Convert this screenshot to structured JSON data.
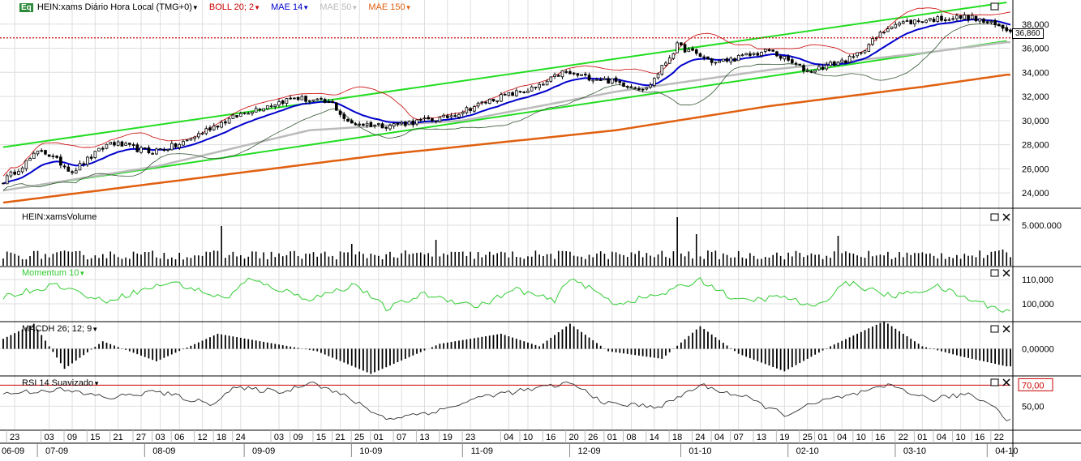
{
  "header": {
    "badge": "Eq",
    "symbol_label": "HEIN:xams Diário Hora Local (TMG+0)",
    "indicators": [
      {
        "label": "BOLL 20; 2",
        "color": "#cc0000"
      },
      {
        "label": "MAE 14",
        "color": "#0000cc"
      },
      {
        "label": "MAE 50",
        "color": "#bbbbbb"
      },
      {
        "label": "MAE 150",
        "color": "#e06010"
      }
    ]
  },
  "panels": {
    "volume": {
      "title": "HEIN:xamsVolume"
    },
    "momentum": {
      "title": "Momentum 10",
      "color": "#33cc33"
    },
    "macd": {
      "title": "MACDH 26; 12; 9"
    },
    "rsi": {
      "title": "RSI 14 Suavizado"
    }
  },
  "price_marker": "36,860",
  "chart_data": [
    {
      "type": "candlestick",
      "name": "price",
      "y_ticks": [
        "24,000",
        "26,000",
        "28,000",
        "30,000",
        "32,000",
        "34,000",
        "36,000",
        "38,000"
      ],
      "y_tick_values": [
        24000,
        26000,
        28000,
        30000,
        32000,
        34000,
        36000,
        38000
      ],
      "ylim": [
        22800,
        40000
      ],
      "last_price": 36860,
      "points": 20,
      "anchors": [
        [
          0,
          25000
        ],
        [
          10,
          27600
        ],
        [
          18,
          25800
        ],
        [
          28,
          28200
        ],
        [
          38,
          27400
        ],
        [
          46,
          28000
        ],
        [
          54,
          29400
        ],
        [
          64,
          30800
        ],
        [
          76,
          31900
        ],
        [
          86,
          31400
        ],
        [
          90,
          29800
        ],
        [
          100,
          29600
        ],
        [
          115,
          30200
        ],
        [
          128,
          31800
        ],
        [
          140,
          32800
        ],
        [
          146,
          34000
        ],
        [
          160,
          33200
        ],
        [
          168,
          32600
        ],
        [
          176,
          36200
        ],
        [
          186,
          34800
        ],
        [
          200,
          35800
        ],
        [
          210,
          34100
        ],
        [
          222,
          35200
        ],
        [
          232,
          38000
        ],
        [
          242,
          38400
        ],
        [
          252,
          38600
        ],
        [
          262,
          37600
        ]
      ],
      "overlays": [
        "Bollinger 20;2",
        "MAE 14",
        "MAE 50",
        "MAE 150"
      ],
      "trend_lines": [
        {
          "from": [
            0,
            27800
          ],
          "to": [
            262,
            39800
          ]
        },
        {
          "from": [
            0,
            24200
          ],
          "to": [
            262,
            36600
          ]
        }
      ],
      "ma150": [
        [
          0,
          23200
        ],
        [
          50,
          25200
        ],
        [
          100,
          27200
        ],
        [
          160,
          29200
        ],
        [
          200,
          31200
        ],
        [
          240,
          32800
        ],
        [
          262,
          33800
        ]
      ],
      "ma50": [
        [
          0,
          24200
        ],
        [
          40,
          26200
        ],
        [
          80,
          29200
        ],
        [
          120,
          30000
        ],
        [
          160,
          32400
        ],
        [
          200,
          34200
        ],
        [
          240,
          35600
        ],
        [
          262,
          36500
        ]
      ]
    },
    {
      "type": "bar",
      "name": "volume",
      "y_ticks": [
        "5.000.000"
      ],
      "y_tick_values": [
        5000000
      ],
      "ylim": [
        0,
        7000000
      ],
      "baseline": 1400000,
      "spikes": [
        [
          57,
          4900000
        ],
        [
          91,
          2700000
        ],
        [
          113,
          3200000
        ],
        [
          176,
          6000000
        ],
        [
          181,
          3900000
        ],
        [
          218,
          3700000
        ],
        [
          261,
          2000000
        ]
      ]
    },
    {
      "type": "line",
      "name": "momentum",
      "y_ticks": [
        "110,000",
        "100,000"
      ],
      "y_tick_values": [
        110,
        100
      ],
      "ylim": [
        93,
        115
      ],
      "anchors": [
        [
          0,
          103
        ],
        [
          14,
          108
        ],
        [
          26,
          101
        ],
        [
          44,
          109
        ],
        [
          58,
          102
        ],
        [
          64,
          110
        ],
        [
          80,
          102
        ],
        [
          92,
          108
        ],
        [
          100,
          98
        ],
        [
          110,
          104
        ],
        [
          124,
          99
        ],
        [
          134,
          106
        ],
        [
          144,
          101
        ],
        [
          148,
          111
        ],
        [
          160,
          100
        ],
        [
          172,
          104
        ],
        [
          182,
          110
        ],
        [
          192,
          101
        ],
        [
          204,
          103
        ],
        [
          212,
          98
        ],
        [
          220,
          109
        ],
        [
          232,
          103
        ],
        [
          244,
          107
        ],
        [
          252,
          102
        ],
        [
          262,
          97
        ]
      ]
    },
    {
      "type": "histogram",
      "name": "macdh",
      "y_ticks": [
        "0,00000"
      ],
      "y_tick_values": [
        0
      ],
      "ylim": [
        -1.05,
        1.05
      ],
      "anchors": [
        [
          0,
          0.4
        ],
        [
          8,
          1.0
        ],
        [
          16,
          -0.8
        ],
        [
          26,
          0.3
        ],
        [
          40,
          -0.5
        ],
        [
          56,
          0.6
        ],
        [
          82,
          -0.1
        ],
        [
          96,
          -1.0
        ],
        [
          114,
          0.2
        ],
        [
          130,
          0.6
        ],
        [
          140,
          0.1
        ],
        [
          148,
          1.0
        ],
        [
          158,
          -0.1
        ],
        [
          172,
          -0.4
        ],
        [
          182,
          0.9
        ],
        [
          192,
          -0.2
        ],
        [
          204,
          -0.9
        ],
        [
          216,
          0.1
        ],
        [
          230,
          1.1
        ],
        [
          240,
          0.1
        ],
        [
          250,
          -0.3
        ],
        [
          262,
          -0.7
        ]
      ]
    },
    {
      "type": "line",
      "name": "rsi",
      "y_ticks": [
        "70,00",
        "50,00"
      ],
      "y_tick_values": [
        70,
        50
      ],
      "ylim": [
        28,
        78
      ],
      "anchors": [
        [
          0,
          62
        ],
        [
          14,
          66
        ],
        [
          28,
          58
        ],
        [
          40,
          64
        ],
        [
          54,
          52
        ],
        [
          60,
          67
        ],
        [
          74,
          64
        ],
        [
          80,
          74
        ],
        [
          90,
          58
        ],
        [
          100,
          38
        ],
        [
          114,
          46
        ],
        [
          126,
          60
        ],
        [
          138,
          66
        ],
        [
          148,
          72
        ],
        [
          158,
          52
        ],
        [
          172,
          50
        ],
        [
          182,
          70
        ],
        [
          194,
          58
        ],
        [
          204,
          42
        ],
        [
          214,
          55
        ],
        [
          226,
          64
        ],
        [
          232,
          70
        ],
        [
          242,
          56
        ],
        [
          252,
          62
        ],
        [
          260,
          48
        ],
        [
          262,
          36
        ]
      ]
    }
  ],
  "x_axis": {
    "points": 264,
    "day_ticks": [
      {
        "i": 3,
        "label": "23"
      },
      {
        "i": 12,
        "label": "03"
      },
      {
        "i": 18,
        "label": "09"
      },
      {
        "i": 24,
        "label": "15"
      },
      {
        "i": 30,
        "label": "21"
      },
      {
        "i": 36,
        "label": "27"
      },
      {
        "i": 41,
        "label": "03"
      },
      {
        "i": 46,
        "label": "06"
      },
      {
        "i": 52,
        "label": "12"
      },
      {
        "i": 57,
        "label": "18"
      },
      {
        "i": 62,
        "label": "24"
      },
      {
        "i": 72,
        "label": "03"
      },
      {
        "i": 77,
        "label": "09"
      },
      {
        "i": 83,
        "label": "15"
      },
      {
        "i": 88,
        "label": "21"
      },
      {
        "i": 93,
        "label": "25"
      },
      {
        "i": 98,
        "label": "01"
      },
      {
        "i": 104,
        "label": "07"
      },
      {
        "i": 110,
        "label": "13"
      },
      {
        "i": 116,
        "label": "19"
      },
      {
        "i": 122,
        "label": "23"
      },
      {
        "i": 132,
        "label": "04"
      },
      {
        "i": 137,
        "label": "10"
      },
      {
        "i": 143,
        "label": "16"
      },
      {
        "i": 149,
        "label": "20"
      },
      {
        "i": 154,
        "label": "26"
      },
      {
        "i": 159,
        "label": "01"
      },
      {
        "i": 164,
        "label": "08"
      },
      {
        "i": 170,
        "label": "14"
      },
      {
        "i": 176,
        "label": "18"
      },
      {
        "i": 182,
        "label": "24"
      },
      {
        "i": 187,
        "label": "04"
      },
      {
        "i": 192,
        "label": "07"
      },
      {
        "i": 198,
        "label": "13"
      },
      {
        "i": 204,
        "label": "19"
      },
      {
        "i": 210,
        "label": "25"
      },
      {
        "i": 214,
        "label": "01"
      },
      {
        "i": 219,
        "label": "04"
      },
      {
        "i": 224,
        "label": "10"
      },
      {
        "i": 229,
        "label": "16"
      },
      {
        "i": 235,
        "label": "22"
      },
      {
        "i": 240,
        "label": "01"
      },
      {
        "i": 245,
        "label": "04"
      },
      {
        "i": 250,
        "label": "10"
      },
      {
        "i": 255,
        "label": "16"
      },
      {
        "i": 260,
        "label": "22"
      }
    ],
    "month_ticks": [
      {
        "i": 0,
        "label": "06-09"
      },
      {
        "i": 14,
        "label": "07-09"
      },
      {
        "i": 42,
        "label": "08-09"
      },
      {
        "i": 68,
        "label": "09-09"
      },
      {
        "i": 96,
        "label": "10-09"
      },
      {
        "i": 125,
        "label": "11-09"
      },
      {
        "i": 153,
        "label": "12-09"
      },
      {
        "i": 182,
        "label": "01-10"
      },
      {
        "i": 210,
        "label": "02-10"
      },
      {
        "i": 238,
        "label": "03-10"
      },
      {
        "i": 262,
        "label": "04-10"
      }
    ]
  }
}
